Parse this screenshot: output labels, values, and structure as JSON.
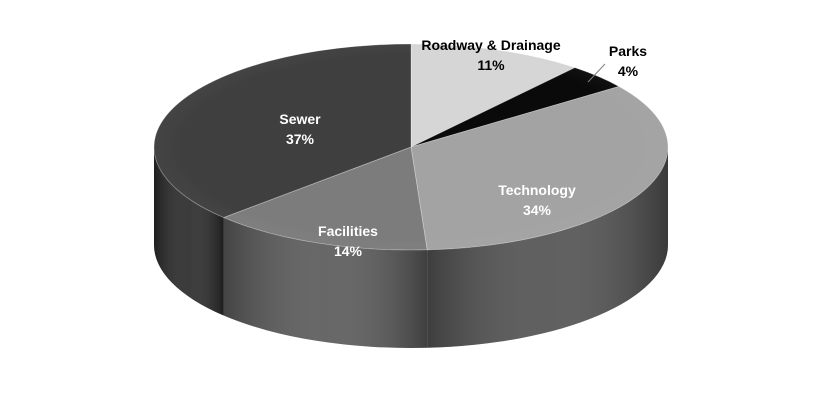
{
  "chart_data": {
    "type": "pie",
    "style": "3d",
    "title": "",
    "slices": [
      {
        "name": "Roadway & Drainage",
        "value": 11,
        "label": "11%",
        "color": "#d6d6d6",
        "side_color": "#aeaeae",
        "label_color": "#000000"
      },
      {
        "name": "Parks",
        "value": 4,
        "label": "4%",
        "color": "#0a0a0a",
        "side_color": "#000000",
        "label_color": "#000000"
      },
      {
        "name": "Technology",
        "value": 34,
        "label": "34%",
        "color": "#a3a3a3",
        "side_color": "#525252",
        "label_color": "#ffffff"
      },
      {
        "name": "Facilities",
        "value": 14,
        "label": "14%",
        "color": "#7c7c7c",
        "side_color": "#5a5a5a",
        "label_color": "#ffffff"
      },
      {
        "name": "Sewer",
        "value": 37,
        "label": "37%",
        "color": "#3f3f3f",
        "side_color": "#2a2a2a",
        "label_color": "#ffffff"
      }
    ],
    "legend": "none"
  }
}
